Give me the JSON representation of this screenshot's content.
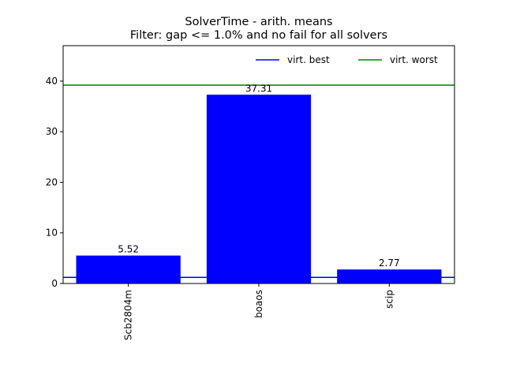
{
  "chart_data": {
    "type": "bar",
    "title_line1": "SolverTime - arith. means",
    "title_line2": "Filter: gap <= 1.0% and no fail for all solvers",
    "categories": [
      "Scb2804m",
      "boaos",
      "scip"
    ],
    "values": [
      5.52,
      37.31,
      2.77
    ],
    "value_labels": [
      "5.52",
      "37.31",
      "2.77"
    ],
    "bar_color": "#0000ff",
    "ylim": [
      0,
      47
    ],
    "yticks": [
      0,
      10,
      20,
      30,
      40
    ],
    "ytick_labels": [
      "0",
      "10",
      "20",
      "30",
      "40"
    ],
    "reference_lines": [
      {
        "name": "virt. best",
        "value": 1.2,
        "color": "#0000ff"
      },
      {
        "name": "virt. worst",
        "value": 39.2,
        "color": "#008000"
      }
    ],
    "legend_position": "top-right",
    "grid": false
  }
}
